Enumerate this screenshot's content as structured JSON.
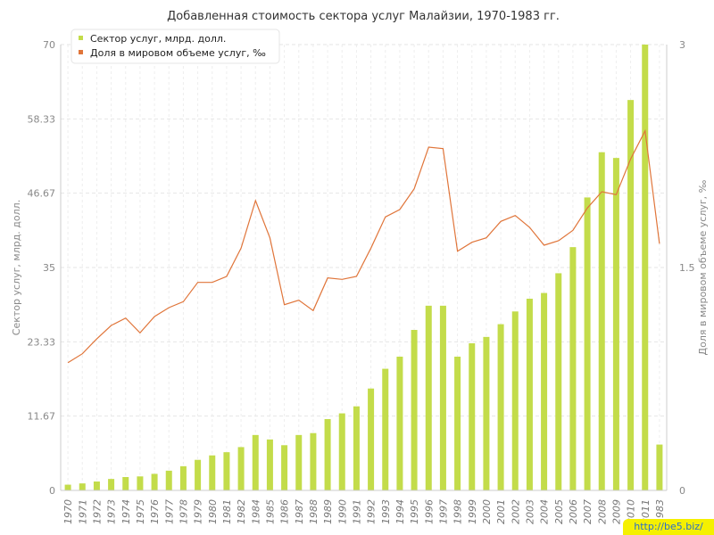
{
  "chart_data": {
    "type": "bar",
    "title": "Добавленная стоимость сектора услуг Малайзии, 1970-1983 гг.",
    "ylabel": "Сектор услуг, млрд. долл.",
    "y2label": "Доля в мировом объеме услуг, ‰",
    "ylim": [
      0,
      70
    ],
    "y2lim": [
      0,
      3
    ],
    "yticks": [
      "0",
      "11.67",
      "23.33",
      "35",
      "46.67",
      "58.33",
      "70"
    ],
    "y2ticks": [
      "0",
      "1.5",
      "3"
    ],
    "grid": true,
    "legend_position": "top-left",
    "colors": {
      "bar": "#c3dc4a",
      "line": "#e0753a"
    },
    "categories": [
      "1970",
      "1971",
      "1972",
      "1973",
      "1974",
      "1975",
      "1976",
      "1977",
      "1978",
      "1979",
      "1980",
      "1981",
      "1982",
      "1984",
      "1985",
      "1986",
      "1987",
      "1988",
      "1989",
      "1990",
      "1991",
      "1992",
      "1993",
      "1994",
      "1995",
      "1996",
      "1997",
      "1998",
      "1999",
      "2000",
      "2001",
      "2002",
      "2003",
      "2004",
      "2005",
      "2006",
      "2007",
      "2008",
      "2009",
      "2010",
      "2011",
      "1983"
    ],
    "series": [
      {
        "name": "Сектор услуг, млрд. долл.",
        "type": "bar",
        "axis": "left",
        "values": [
          0.9,
          1.1,
          1.4,
          1.8,
          2.1,
          2.2,
          2.6,
          3.1,
          3.8,
          4.8,
          5.5,
          6.0,
          6.8,
          8.7,
          8.0,
          7.1,
          8.7,
          9.0,
          11.2,
          12.1,
          13.2,
          16.0,
          19.1,
          21.0,
          25.2,
          29.0,
          29.0,
          21.0,
          23.1,
          24.1,
          26.1,
          28.1,
          30.1,
          31.0,
          34.1,
          38.2,
          46.0,
          53.1,
          52.2,
          61.3,
          70.0,
          7.2
        ]
      },
      {
        "name": "Доля в мировом объеме услуг, ‰",
        "type": "line",
        "axis": "right",
        "values": [
          0.86,
          0.92,
          1.02,
          1.11,
          1.16,
          1.06,
          1.17,
          1.23,
          1.27,
          1.4,
          1.4,
          1.44,
          1.63,
          1.95,
          1.7,
          1.25,
          1.28,
          1.21,
          1.43,
          1.42,
          1.44,
          1.63,
          1.84,
          1.89,
          2.03,
          2.31,
          2.3,
          1.61,
          1.67,
          1.7,
          1.81,
          1.85,
          1.77,
          1.65,
          1.68,
          1.75,
          1.9,
          2.01,
          1.99,
          2.23,
          2.42,
          1.66
        ]
      }
    ]
  },
  "watermark": "http://be5.biz/"
}
